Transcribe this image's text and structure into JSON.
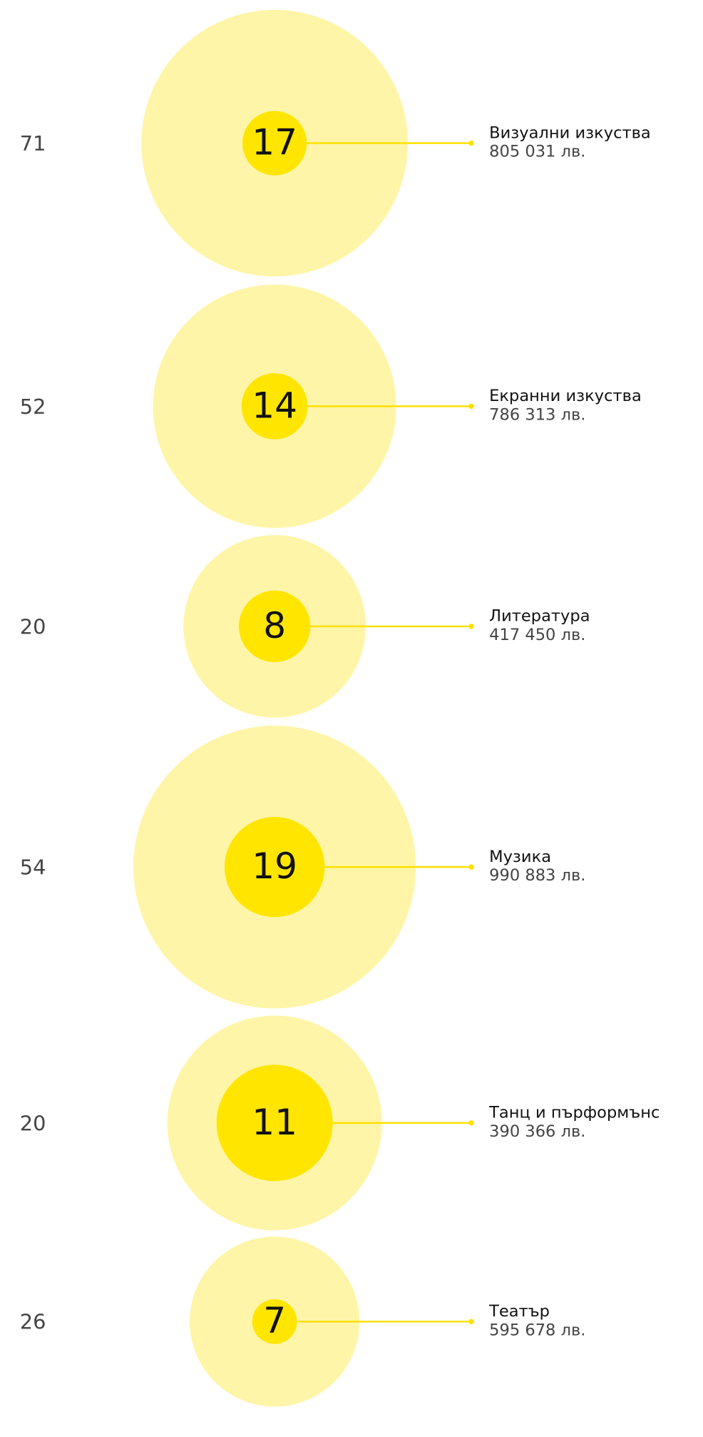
{
  "rows": [
    {
      "count": 71,
      "projects": 17,
      "name": "Визуални изкуства",
      "amount": "805 031 лв."
    },
    {
      "count": 52,
      "projects": 14,
      "name": "Екранни изкуства",
      "amount": "786 313 лв."
    },
    {
      "count": 20,
      "projects": 8,
      "name": "Литература",
      "amount": "417 450 лв."
    },
    {
      "count": 54,
      "projects": 19,
      "name": "Музика",
      "amount": "990 883 лв."
    },
    {
      "count": 20,
      "projects": 11,
      "name": "Танц и пърформънс",
      "amount": "390 366 лв."
    },
    {
      "count": 26,
      "projects": 7,
      "name": "Театър",
      "amount": "595 678 лв."
    }
  ]
}
